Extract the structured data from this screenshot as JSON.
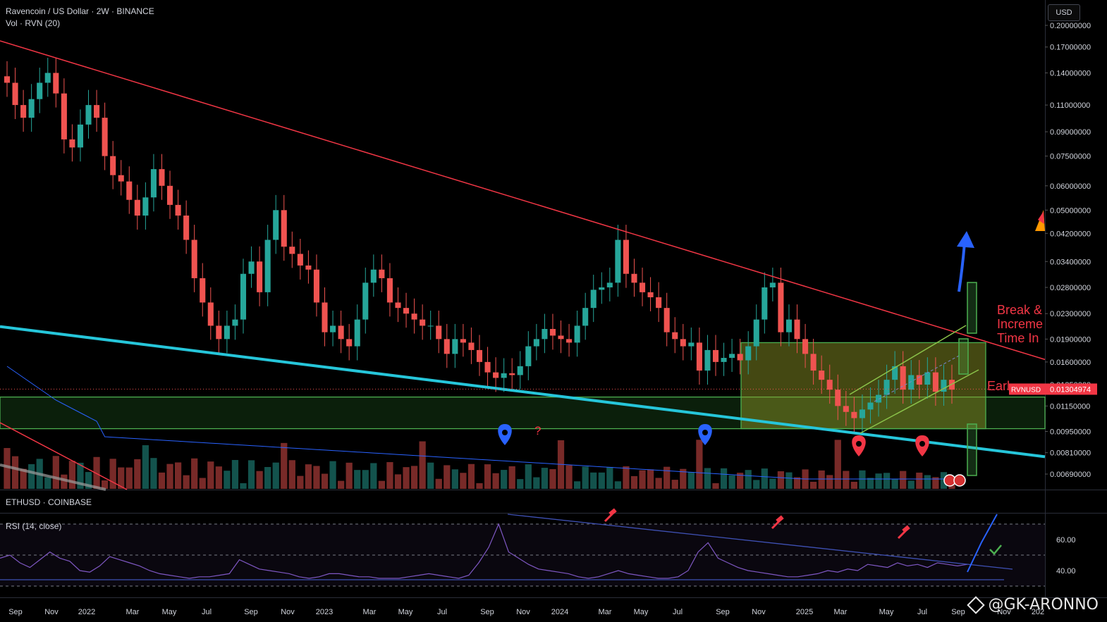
{
  "header": {
    "symbol_line": "Ravencoin / US Dollar · 2W · BINANCE",
    "volume_line": "Vol · RVN (20)",
    "currency_button": "USD"
  },
  "lower_pane": {
    "symbol_line": "ETHUSD · COINBASE",
    "indicator_line": "RSI (14, close)"
  },
  "annotations": {
    "break_text": [
      "Break &",
      "Increme",
      "Time In"
    ],
    "early_text": "Earl",
    "question_mark": "?"
  },
  "price_tag": {
    "symbol": "RVNUSD",
    "value": "0.01304974"
  },
  "watermark": "@GK-ARONNO",
  "colors": {
    "up": "#26a69a",
    "down": "#ef5350",
    "trendline": "#f23645",
    "support": "#26c6da",
    "zone": "#4caf50",
    "arrow": "#2962ff",
    "rsi": "#7e57c2"
  },
  "chart_data": [
    {
      "type": "candlestick",
      "scale": "log",
      "y_axis_labels": [
        "0.20000000",
        "0.17000000",
        "0.14000000",
        "0.11000000",
        "0.09000000",
        "0.07500000",
        "0.06000000",
        "0.05000000",
        "0.04200000",
        "0.03400000",
        "0.02800000",
        "0.02300000",
        "0.01900000",
        "0.01600000",
        "0.01350000",
        "0.01150000",
        "0.00950000",
        "0.00810000",
        "0.00690000"
      ],
      "y_axis_values": [
        0.2,
        0.17,
        0.14,
        0.11,
        0.09,
        0.075,
        0.06,
        0.05,
        0.042,
        0.034,
        0.028,
        0.023,
        0.019,
        0.016,
        0.0135,
        0.0115,
        0.0095,
        0.0081,
        0.0069
      ],
      "x_axis_labels": [
        "Sep",
        "Nov",
        "2022",
        "Mar",
        "May",
        "Jul",
        "Sep",
        "Nov",
        "2023",
        "Mar",
        "May",
        "Jul",
        "Sep",
        "Nov",
        "2024",
        "Mar",
        "May",
        "Jul",
        "Sep",
        "Nov",
        "2025",
        "Mar",
        "May",
        "Jul",
        "Sep",
        "Nov",
        "202"
      ],
      "start_date": "2021-09-06",
      "interval": "2W",
      "closes": [
        0.13,
        0.11,
        0.1,
        0.115,
        0.13,
        0.14,
        0.12,
        0.085,
        0.08,
        0.095,
        0.11,
        0.1,
        0.075,
        0.065,
        0.062,
        0.054,
        0.048,
        0.055,
        0.068,
        0.06,
        0.052,
        0.048,
        0.04,
        0.03,
        0.025,
        0.021,
        0.019,
        0.021,
        0.022,
        0.031,
        0.034,
        0.027,
        0.04,
        0.05,
        0.038,
        0.036,
        0.033,
        0.032,
        0.025,
        0.02,
        0.021,
        0.019,
        0.018,
        0.022,
        0.029,
        0.032,
        0.03,
        0.025,
        0.024,
        0.023,
        0.022,
        0.021,
        0.021,
        0.019,
        0.017,
        0.019,
        0.0185,
        0.0175,
        0.016,
        0.0148,
        0.0142,
        0.0147,
        0.0145,
        0.0155,
        0.018,
        0.019,
        0.0205,
        0.0195,
        0.019,
        0.0185,
        0.021,
        0.024,
        0.0275,
        0.028,
        0.029,
        0.04,
        0.031,
        0.029,
        0.027,
        0.026,
        0.024,
        0.02,
        0.019,
        0.018,
        0.0185,
        0.015,
        0.0175,
        0.016,
        0.0165,
        0.017,
        0.0162,
        0.018,
        0.022,
        0.028,
        0.029,
        0.02,
        0.022,
        0.019,
        0.017,
        0.015,
        0.014,
        0.013,
        0.0115,
        0.011,
        0.0105,
        0.0112,
        0.0118,
        0.0125,
        0.014,
        0.0155,
        0.013,
        0.0145,
        0.0135,
        0.0148,
        0.0128,
        0.014,
        0.013
      ],
      "volume_series_name": "Vol · RVN (20)",
      "trendline_start_price": 0.2,
      "trendline_end_price": 0.0163,
      "support_line_start_price": 0.022,
      "support_line_end_price": 0.0082,
      "zone_low": 0.0097,
      "zone_high": 0.0123,
      "box_low": 0.0097,
      "box_high": 0.0185,
      "current_price": 0.01304974
    },
    {
      "type": "line",
      "series": [
        {
          "name": "RSI (14, close)"
        }
      ],
      "y_axis_labels": [
        "60.00",
        "40.00"
      ],
      "y_axis_values": [
        60,
        40
      ],
      "bands": [
        70,
        50,
        30
      ],
      "values": [
        48,
        50,
        45,
        42,
        47,
        52,
        48,
        46,
        40,
        39,
        43,
        49,
        47,
        45,
        43,
        40,
        38,
        37,
        36,
        35,
        36,
        36,
        37,
        38,
        47,
        44,
        41,
        40,
        39,
        38,
        36,
        35,
        36,
        38,
        38,
        37,
        36,
        36,
        35,
        35,
        35,
        36,
        37,
        38,
        37,
        36,
        35,
        37,
        45,
        55,
        70,
        52,
        48,
        44,
        41,
        40,
        39,
        38,
        36,
        35,
        36,
        38,
        40,
        38,
        37,
        36,
        35,
        35,
        36,
        40,
        52,
        58,
        48,
        45,
        42,
        40,
        39,
        38,
        37,
        36,
        36,
        37,
        38,
        40,
        39,
        41,
        40,
        44,
        43,
        42,
        45,
        43,
        44,
        42,
        45,
        44,
        43,
        44
      ]
    }
  ]
}
